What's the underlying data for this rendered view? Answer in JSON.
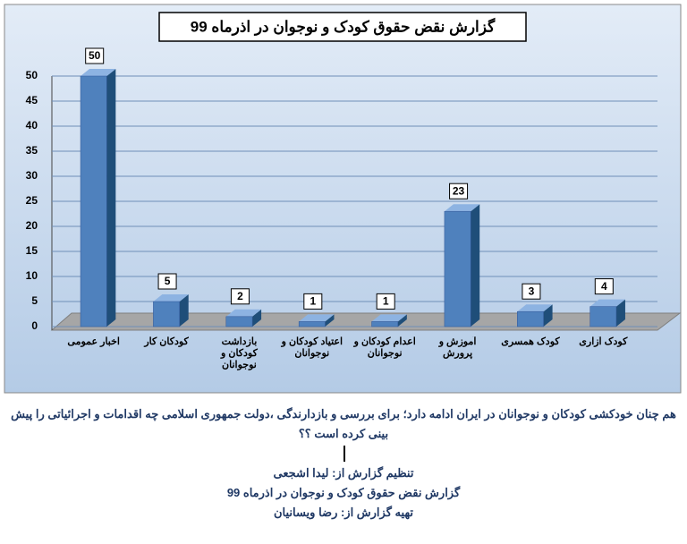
{
  "chart_data": {
    "type": "bar",
    "title": "گزارش نقض حقوق کودک و نوجوان در اذرماه 99",
    "categories": [
      "اخبار عمومی",
      "کودکان کار",
      "بازداشت کودکان و نوجوانان",
      "اعتیاد کودکان و نوجوانان",
      "اعدام کودکان و نوجوانان",
      "آموزش و پرورش",
      "کودک همسری",
      "کودک آزاری"
    ],
    "values": [
      50,
      5,
      2,
      1,
      1,
      23,
      3,
      4
    ],
    "color": "#4f81bd",
    "ylim": [
      0,
      50
    ],
    "yticks": [
      0,
      5,
      10,
      15,
      20,
      25,
      30,
      35,
      40,
      45,
      50
    ],
    "grid": true
  },
  "document": {
    "question": "هم چنان خودکشی کودکان و نوجوانان در ایران ادامه دارد؛ برای بررسی و بازدارندگی ،دولت جمهوری اسلامی چه اقدامات و اجرائیاتی را پیش بینی کرده است ؟؟",
    "credits": [
      "تنظیم گزارش از: لیدا اشجعی",
      "گزارش نقض حقوق کودک و نوجوان در اذرماه 99",
      "تهیه گزارش از: رضا ویسانیان"
    ]
  }
}
